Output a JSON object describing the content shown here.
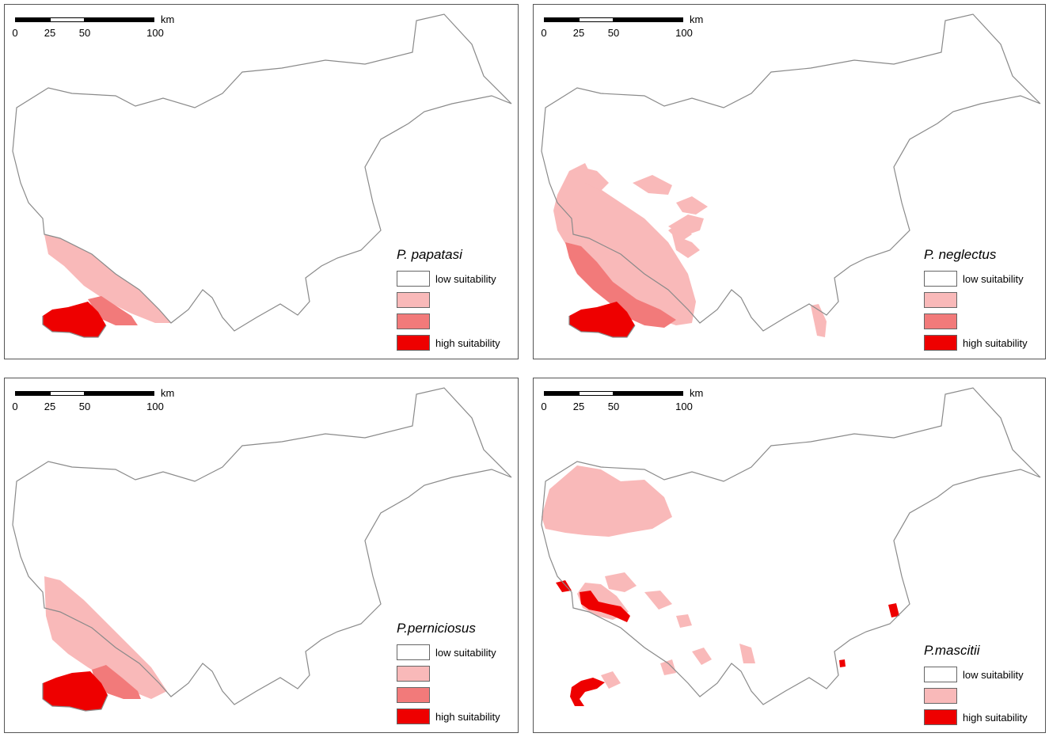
{
  "scalebar": {
    "ticks": [
      "0",
      "25",
      "50",
      "100"
    ],
    "unit": "km"
  },
  "colors": {
    "outline": "#8a8a8a",
    "low": "#ffffff",
    "medium_low": "#f9b9b9",
    "medium_high": "#f27a7a",
    "high": "#ee0000"
  },
  "panels": [
    {
      "species": "P. papatasi",
      "legend": [
        {
          "label": "low suitability",
          "color": "#ffffff"
        },
        {
          "label": "",
          "color": "#f9b9b9"
        },
        {
          "label": "",
          "color": "#f27a7a"
        },
        {
          "label": "high suitability",
          "color": "#ee0000"
        }
      ]
    },
    {
      "species": "P. neglectus",
      "legend": [
        {
          "label": "low suitability",
          "color": "#ffffff"
        },
        {
          "label": "",
          "color": "#f9b9b9"
        },
        {
          "label": "",
          "color": "#f27a7a"
        },
        {
          "label": "high suitability",
          "color": "#ee0000"
        }
      ]
    },
    {
      "species": "P.perniciosus",
      "legend": [
        {
          "label": "low suitability",
          "color": "#ffffff"
        },
        {
          "label": "",
          "color": "#f9b9b9"
        },
        {
          "label": "",
          "color": "#f27a7a"
        },
        {
          "label": "high suitability",
          "color": "#ee0000"
        }
      ]
    },
    {
      "species": "P.mascitii",
      "legend": [
        {
          "label": "low suitability",
          "color": "#ffffff"
        },
        {
          "label": "",
          "color": "#f9b9b9"
        },
        {
          "label": "high suitability",
          "color": "#ee0000"
        }
      ]
    }
  ]
}
